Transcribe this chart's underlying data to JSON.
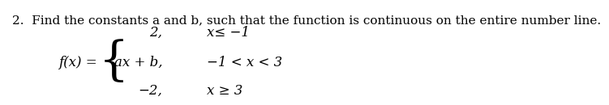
{
  "title_text": "2.  Find the constants a and b, such that the function is continuous on the entire number line.",
  "title_fontsize": 11,
  "fx_label": "f(x) =",
  "brace": "{",
  "lines": [
    {
      "expr": "2,",
      "cond": "x≤ −1"
    },
    {
      "expr": "ax + b,",
      "cond": "−1 < x < 3"
    },
    {
      "expr": "−2,",
      "cond": "x ≥ 3"
    }
  ],
  "background_color": "#ffffff",
  "text_color": "#000000",
  "font_family": "serif"
}
